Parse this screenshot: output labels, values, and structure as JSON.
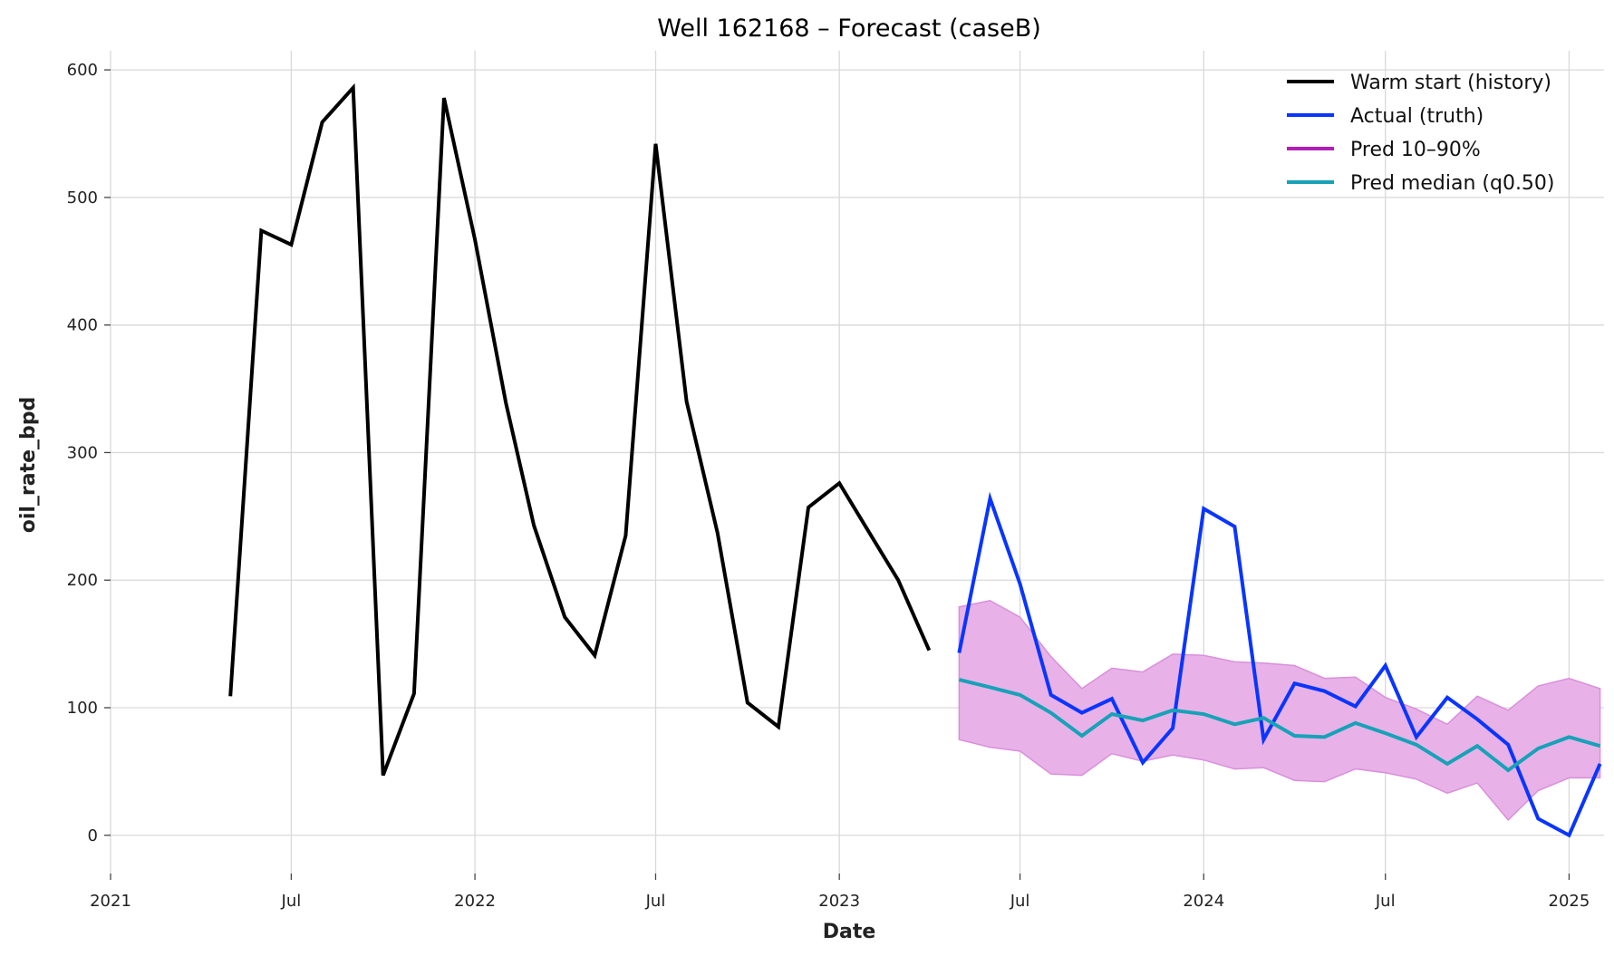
{
  "chart_data": {
    "type": "line",
    "title": "Well 162168 – Forecast (caseB)",
    "xlabel": "Date",
    "ylabel": "oil_rate_bpd",
    "ylim": [
      -30,
      615
    ],
    "xlim": [
      "2021-01-01",
      "2025-02-05"
    ],
    "grid": true,
    "legend_position": "top-right",
    "x_ticks": [
      {
        "date": "2021-01-01",
        "label": "2021"
      },
      {
        "date": "2021-07-01",
        "label": "Jul"
      },
      {
        "date": "2022-01-01",
        "label": "2022"
      },
      {
        "date": "2022-07-01",
        "label": "Jul"
      },
      {
        "date": "2023-01-01",
        "label": "2023"
      },
      {
        "date": "2023-07-01",
        "label": "Jul"
      },
      {
        "date": "2024-01-01",
        "label": "2024"
      },
      {
        "date": "2024-07-01",
        "label": "Jul"
      },
      {
        "date": "2025-01-01",
        "label": "2025"
      }
    ],
    "y_ticks": [
      0,
      100,
      200,
      300,
      400,
      500,
      600
    ],
    "series": [
      {
        "name": "Warm start (history)",
        "color": "#000000",
        "points": [
          [
            "2021-05-01",
            109
          ],
          [
            "2021-06-01",
            474
          ],
          [
            "2021-07-01",
            463
          ],
          [
            "2021-08-01",
            559
          ],
          [
            "2021-09-01",
            586
          ],
          [
            "2021-10-01",
            47
          ],
          [
            "2021-11-01",
            111
          ],
          [
            "2021-12-01",
            578
          ],
          [
            "2022-01-01",
            467
          ],
          [
            "2022-02-01",
            339
          ],
          [
            "2022-03-01",
            243
          ],
          [
            "2022-04-01",
            171
          ],
          [
            "2022-05-01",
            141
          ],
          [
            "2022-06-01",
            235
          ],
          [
            "2022-07-01",
            542
          ],
          [
            "2022-08-01",
            340
          ],
          [
            "2022-09-01",
            237
          ],
          [
            "2022-10-01",
            104
          ],
          [
            "2022-11-01",
            85
          ],
          [
            "2022-12-01",
            257
          ],
          [
            "2023-01-01",
            276
          ],
          [
            "2023-02-01",
            236
          ],
          [
            "2023-03-01",
            200
          ],
          [
            "2023-04-01",
            145
          ]
        ]
      },
      {
        "name": "Actual (truth)",
        "color": "#0a35ff",
        "points": [
          [
            "2023-05-01",
            143
          ],
          [
            "2023-06-01",
            264
          ],
          [
            "2023-07-01",
            197
          ],
          [
            "2023-08-01",
            110
          ],
          [
            "2023-09-01",
            96
          ],
          [
            "2023-10-01",
            107
          ],
          [
            "2023-11-01",
            57
          ],
          [
            "2023-12-01",
            84
          ],
          [
            "2024-01-01",
            256
          ],
          [
            "2024-02-01",
            242
          ],
          [
            "2024-03-01",
            75
          ],
          [
            "2024-04-01",
            119
          ],
          [
            "2024-05-01",
            113
          ],
          [
            "2024-06-01",
            101
          ],
          [
            "2024-07-01",
            133
          ],
          [
            "2024-08-01",
            77
          ],
          [
            "2024-09-01",
            108
          ],
          [
            "2024-10-01",
            91
          ],
          [
            "2024-11-01",
            71
          ],
          [
            "2024-12-01",
            13
          ],
          [
            "2025-01-01",
            0
          ],
          [
            "2025-02-01",
            56
          ]
        ]
      },
      {
        "name": "Pred 10–90%",
        "color": "#b21eb8",
        "band_color": "#e8b2e8",
        "band_edge_color": "#d98fdb",
        "points_low_high": [
          [
            "2023-05-01",
            75,
            179
          ],
          [
            "2023-06-01",
            69,
            184
          ],
          [
            "2023-07-01",
            66,
            171
          ],
          [
            "2023-08-01",
            48,
            140
          ],
          [
            "2023-09-01",
            47,
            115
          ],
          [
            "2023-10-01",
            64,
            131
          ],
          [
            "2023-11-01",
            58,
            128
          ],
          [
            "2023-12-01",
            63,
            142
          ],
          [
            "2024-01-01",
            59,
            141
          ],
          [
            "2024-02-01",
            52,
            136
          ],
          [
            "2024-03-01",
            53,
            135
          ],
          [
            "2024-04-01",
            43,
            133
          ],
          [
            "2024-05-01",
            42,
            123
          ],
          [
            "2024-06-01",
            52,
            124
          ],
          [
            "2024-07-01",
            49,
            108
          ],
          [
            "2024-08-01",
            44,
            99
          ],
          [
            "2024-09-01",
            33,
            87
          ],
          [
            "2024-10-01",
            41,
            109
          ],
          [
            "2024-11-01",
            12,
            98
          ],
          [
            "2024-12-01",
            35,
            117
          ],
          [
            "2025-01-01",
            45,
            123
          ],
          [
            "2025-02-01",
            45,
            115
          ]
        ]
      },
      {
        "name": "Pred median (q0.50)",
        "color": "#17a2b8",
        "points": [
          [
            "2023-05-01",
            122
          ],
          [
            "2023-06-01",
            116
          ],
          [
            "2023-07-01",
            110
          ],
          [
            "2023-08-01",
            96
          ],
          [
            "2023-09-01",
            78
          ],
          [
            "2023-10-01",
            95
          ],
          [
            "2023-11-01",
            90
          ],
          [
            "2023-12-01",
            98
          ],
          [
            "2024-01-01",
            95
          ],
          [
            "2024-02-01",
            87
          ],
          [
            "2024-03-01",
            92
          ],
          [
            "2024-04-01",
            78
          ],
          [
            "2024-05-01",
            77
          ],
          [
            "2024-06-01",
            88
          ],
          [
            "2024-07-01",
            80
          ],
          [
            "2024-08-01",
            71
          ],
          [
            "2024-09-01",
            56
          ],
          [
            "2024-10-01",
            70
          ],
          [
            "2024-11-01",
            51
          ],
          [
            "2024-12-01",
            68
          ],
          [
            "2025-01-01",
            77
          ],
          [
            "2025-02-01",
            70
          ]
        ]
      }
    ],
    "legend": [
      {
        "label": "Warm start (history)",
        "color": "#000000"
      },
      {
        "label": "Actual (truth)",
        "color": "#0a35ff"
      },
      {
        "label": "Pred 10–90%",
        "color": "#b21eb8"
      },
      {
        "label": "Pred median (q0.50)",
        "color": "#17a2b8"
      }
    ]
  }
}
